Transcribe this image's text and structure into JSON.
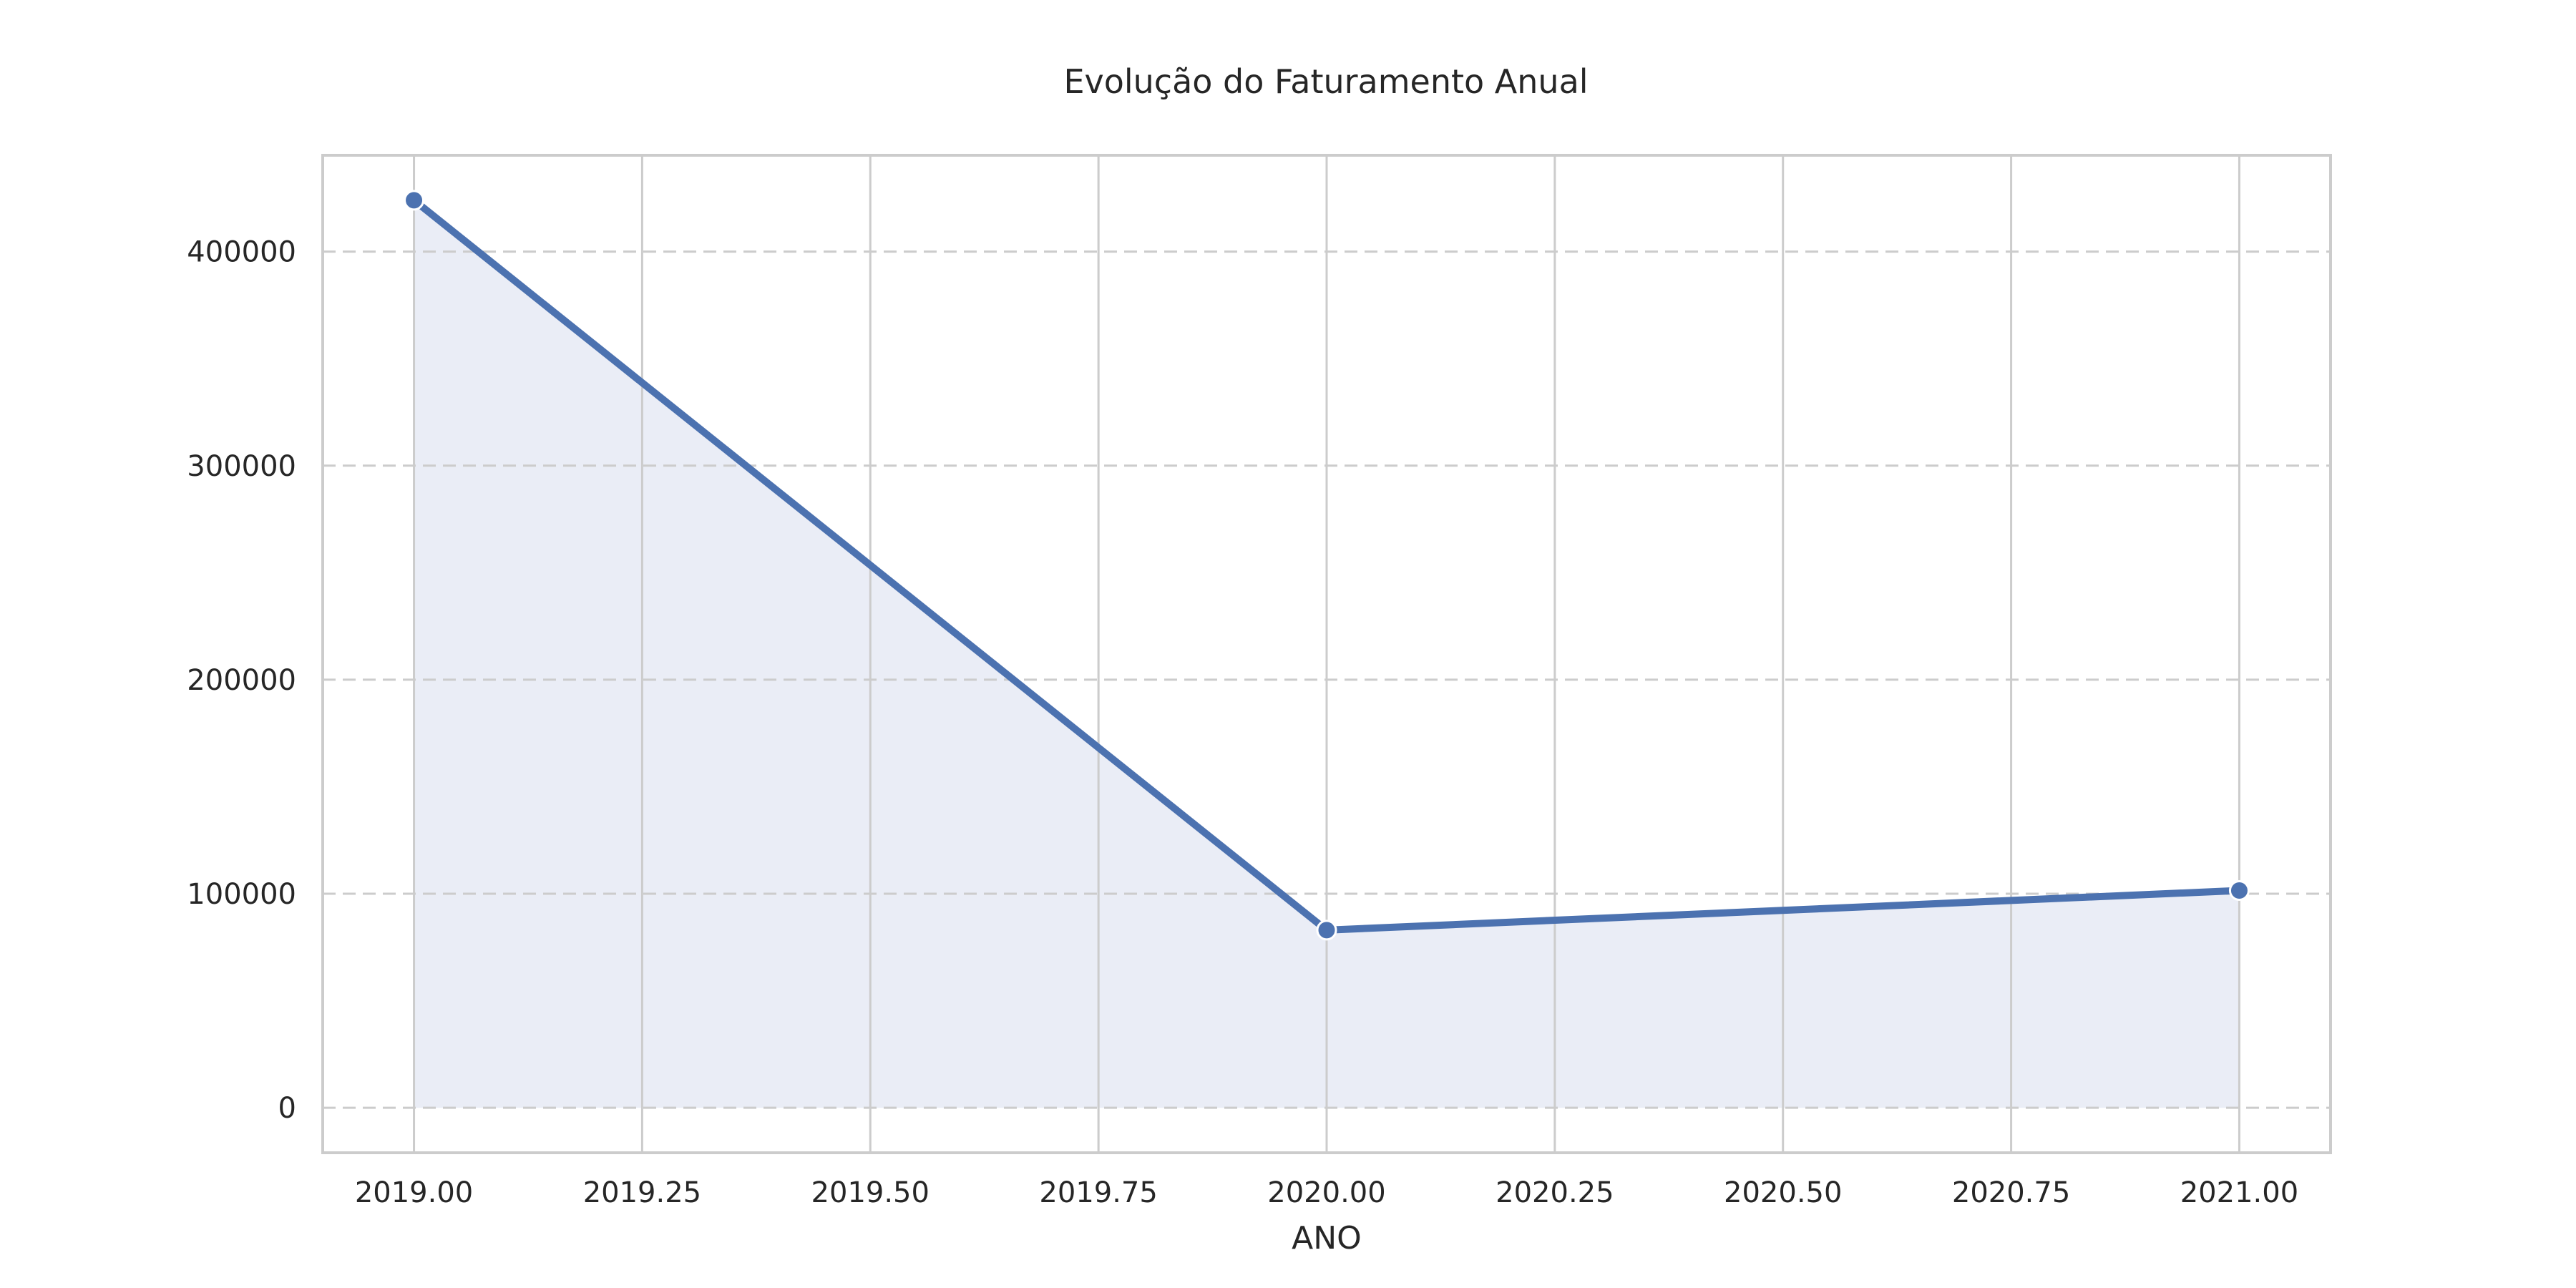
{
  "chart_data": {
    "type": "area",
    "title": "Evolução do Faturamento Anual",
    "xlabel": "ANO",
    "ylabel": "",
    "x": [
      2019,
      2020,
      2021
    ],
    "series": [
      {
        "values": [
          424000,
          83000,
          101500
        ]
      }
    ],
    "xlim": [
      2018.9,
      2021.1
    ],
    "ylim": [
      -21000,
      445000
    ],
    "x_ticks": [
      2019.0,
      2019.25,
      2019.5,
      2019.75,
      2020.0,
      2020.25,
      2020.5,
      2020.75,
      2021.0
    ],
    "x_tick_labels": [
      "2019.00",
      "2019.25",
      "2019.50",
      "2019.75",
      "2020.00",
      "2020.25",
      "2020.50",
      "2020.75",
      "2021.00"
    ],
    "y_ticks": [
      0,
      100000,
      200000,
      300000,
      400000
    ],
    "y_tick_labels": [
      "0",
      "100000",
      "200000",
      "300000",
      "400000"
    ],
    "grid": {
      "x": "solid",
      "y": "dashed"
    },
    "colors": {
      "line": "#4c72b0",
      "fill": "#eaedf6",
      "grid": "#cccccc",
      "frame": "#cccccc",
      "marker_edge": "#ffffff"
    }
  }
}
